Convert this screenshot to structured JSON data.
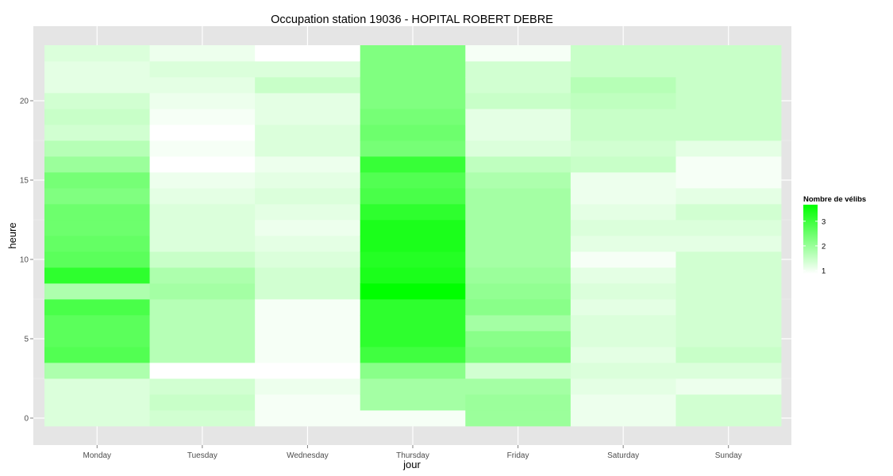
{
  "chart_data": {
    "type": "heatmap",
    "title": "Occupation station 19036 - HOPITAL ROBERT DEBRE",
    "xlabel": "jour",
    "ylabel": "heure",
    "categories": [
      "Monday",
      "Tuesday",
      "Wednesday",
      "Thursday",
      "Friday",
      "Saturday",
      "Sunday"
    ],
    "y_values": [
      0,
      1,
      2,
      3,
      4,
      5,
      6,
      7,
      8,
      9,
      10,
      11,
      12,
      13,
      14,
      15,
      16,
      17,
      18,
      19,
      20,
      21,
      22,
      23
    ],
    "ylim": [
      -0.5,
      23.5
    ],
    "yticks": [
      0,
      5,
      10,
      15,
      20
    ],
    "values": [
      [
        1.4,
        1.4,
        1.4,
        1.9,
        2.9,
        2.8,
        2.8,
        3.0,
        1.9,
        3.3,
        2.8,
        2.7,
        2.6,
        2.6,
        2.4,
        2.5,
        2.1,
        1.8,
        1.5,
        1.6,
        1.5,
        1.3,
        1.3,
        1.4
      ],
      [
        1.5,
        1.6,
        1.5,
        1.0,
        1.8,
        1.8,
        1.8,
        1.8,
        2.0,
        1.9,
        1.6,
        1.4,
        1.4,
        1.4,
        1.3,
        1.2,
        1.0,
        1.1,
        1.0,
        1.1,
        1.2,
        1.3,
        1.4,
        1.2
      ],
      [
        1.1,
        1.1,
        1.2,
        1.0,
        1.1,
        1.1,
        1.1,
        1.1,
        1.5,
        1.5,
        1.4,
        1.3,
        1.2,
        1.3,
        1.4,
        1.3,
        1.2,
        1.4,
        1.4,
        1.3,
        1.3,
        1.6,
        1.4,
        1.0
      ],
      [
        1.1,
        2.0,
        2.0,
        2.3,
        3.1,
        3.3,
        3.3,
        3.3,
        3.8,
        3.5,
        3.4,
        3.5,
        3.5,
        3.3,
        3.0,
        2.9,
        3.2,
        2.5,
        2.6,
        2.5,
        2.4,
        2.4,
        2.4,
        2.4
      ],
      [
        2.1,
        2.1,
        2.0,
        1.5,
        2.4,
        2.3,
        2.0,
        2.3,
        2.2,
        2.1,
        2.0,
        2.0,
        2.0,
        2.0,
        2.0,
        1.9,
        1.7,
        1.4,
        1.3,
        1.3,
        1.6,
        1.5,
        1.5,
        1.1
      ],
      [
        1.2,
        1.2,
        1.3,
        1.4,
        1.3,
        1.4,
        1.4,
        1.3,
        1.4,
        1.3,
        1.1,
        1.3,
        1.4,
        1.3,
        1.2,
        1.2,
        1.6,
        1.5,
        1.6,
        1.6,
        1.7,
        1.8,
        1.6,
        1.6
      ],
      [
        1.5,
        1.5,
        1.2,
        1.4,
        1.6,
        1.5,
        1.5,
        1.5,
        1.5,
        1.5,
        1.5,
        1.3,
        1.4,
        1.5,
        1.3,
        1.1,
        1.1,
        1.3,
        1.6,
        1.6,
        1.6,
        1.6,
        1.6,
        1.6
      ]
    ],
    "legend": {
      "title": "Nombre de vélibs",
      "ticks": [
        1,
        2,
        3
      ],
      "range": [
        1,
        3.8
      ],
      "low_color": "#ffffff",
      "high_color": "#00ff00",
      "placement": "right"
    },
    "panel_color": "#e5e5e5",
    "grid_color": "#ffffff"
  }
}
